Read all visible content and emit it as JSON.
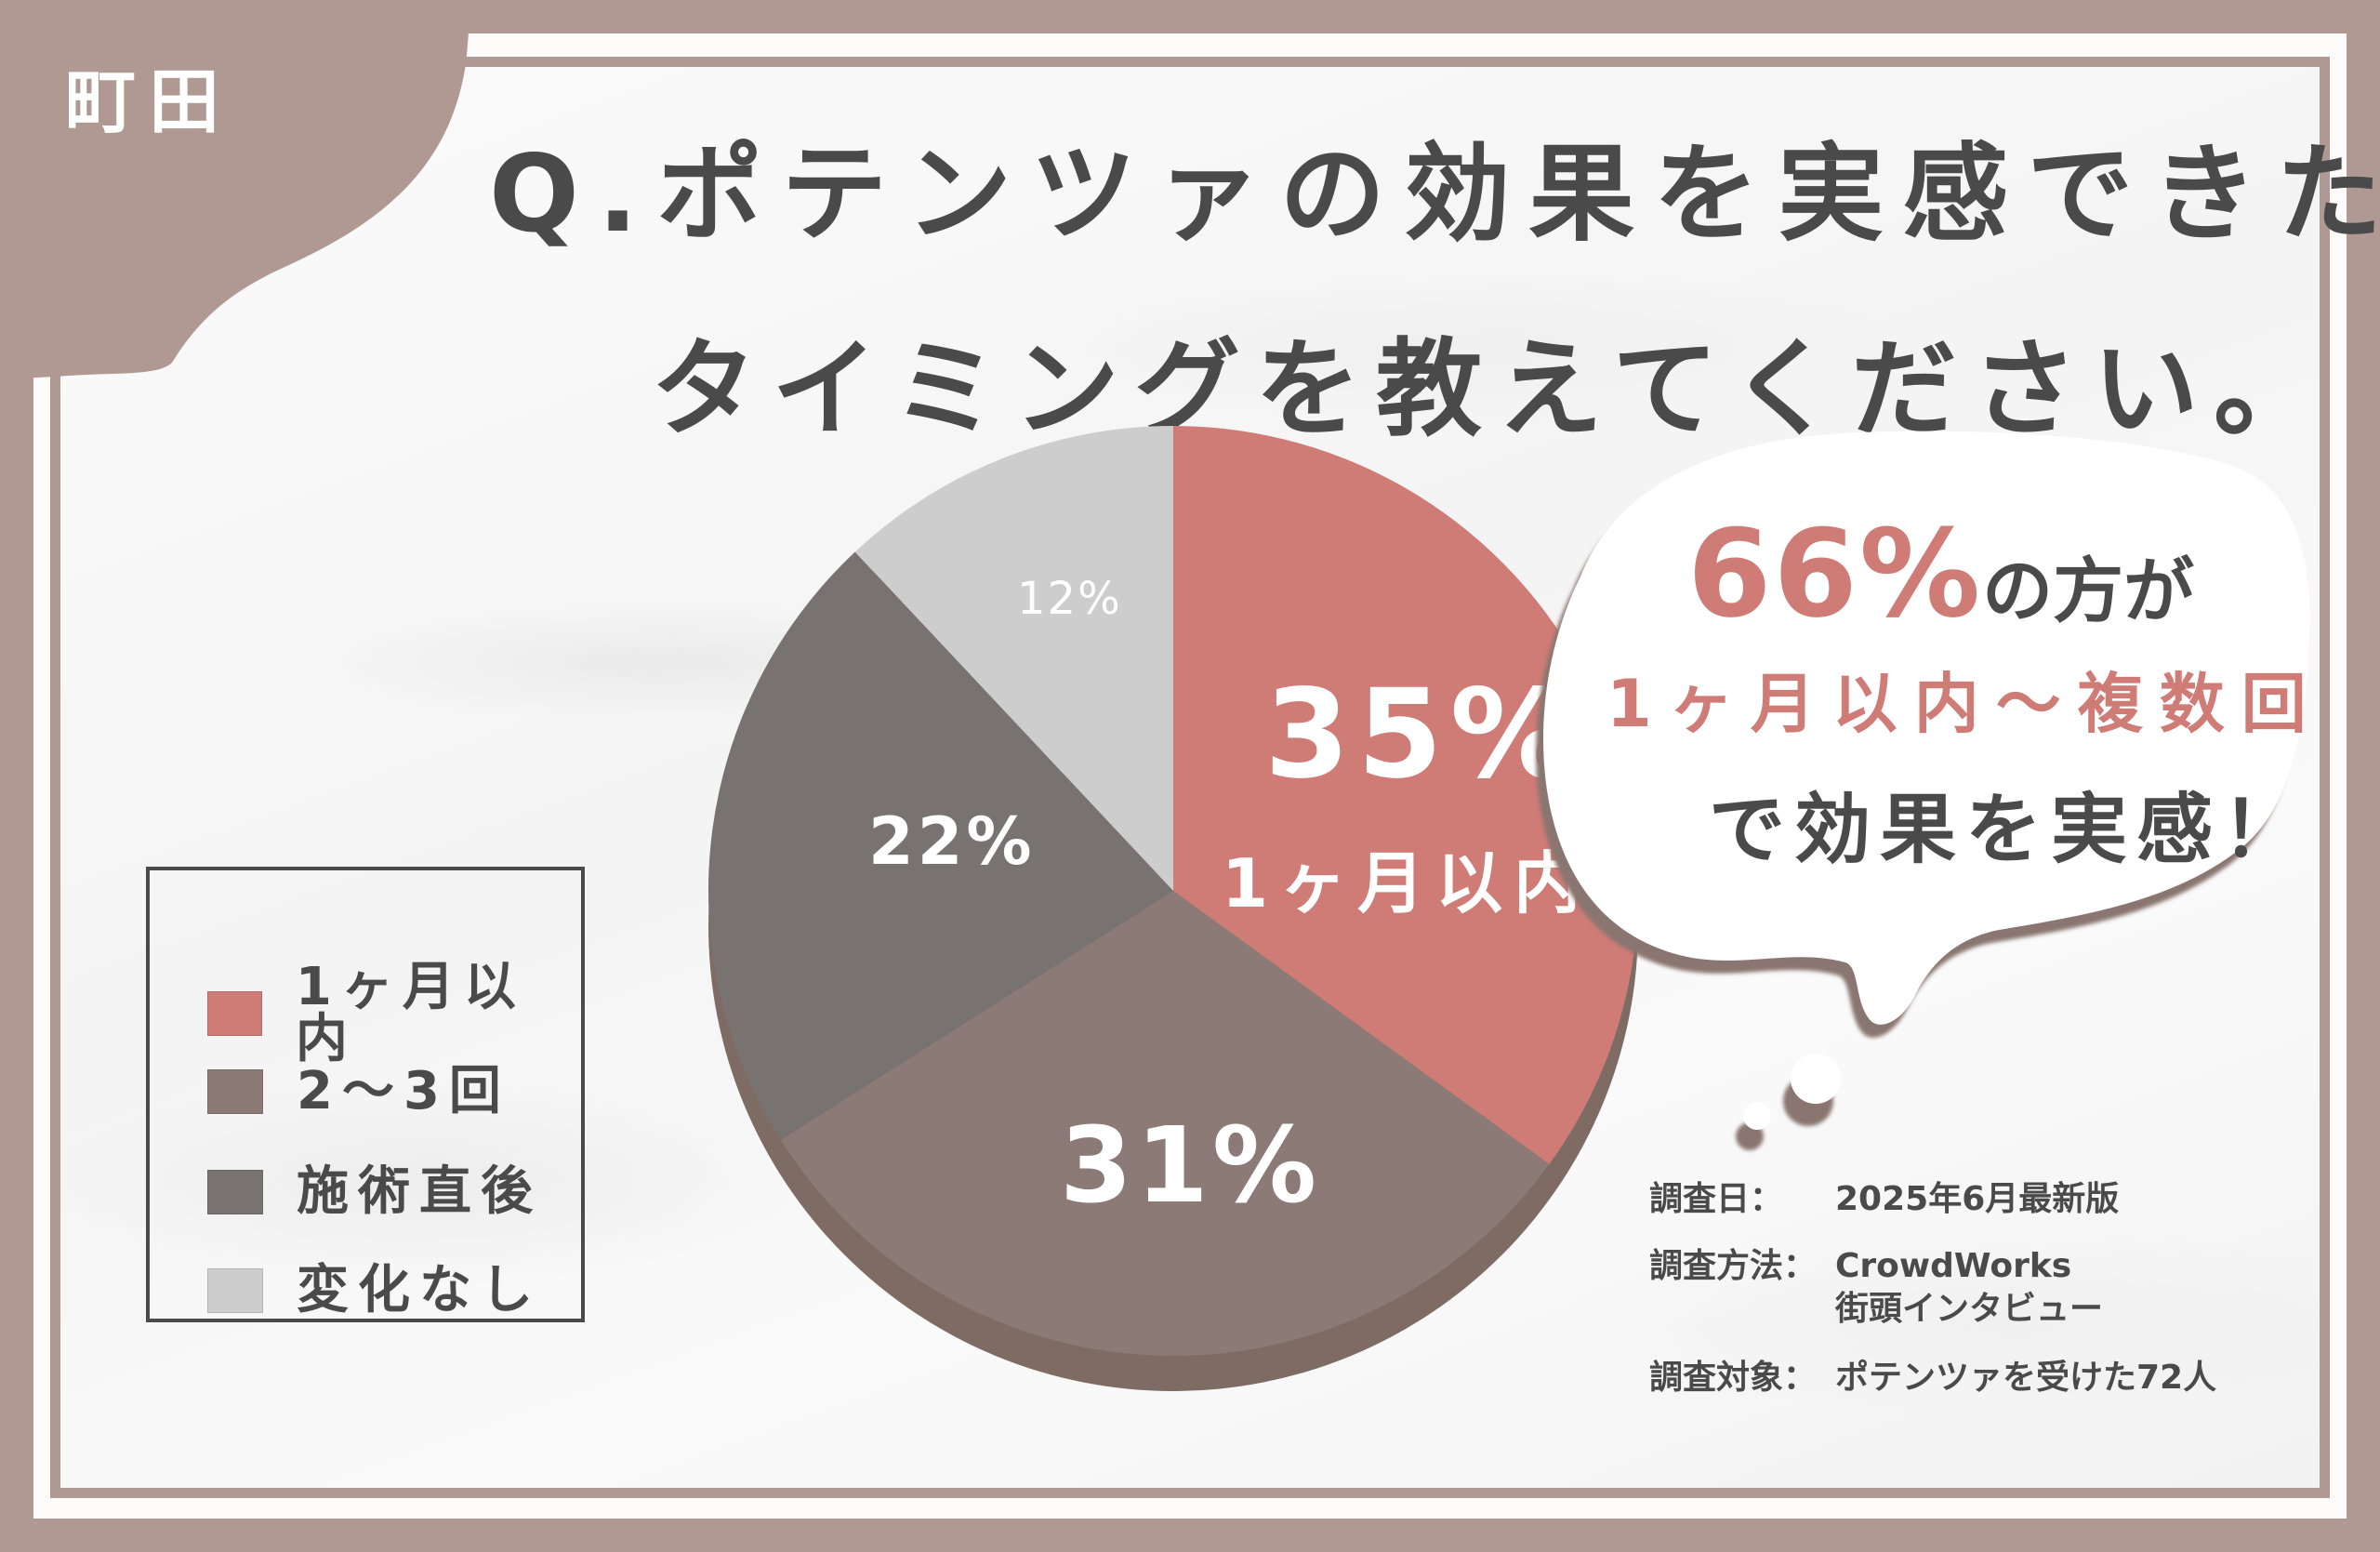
{
  "logo": {
    "text": "町田"
  },
  "title": {
    "line1": "Q.ポテンツァの効果を実感できた",
    "line2": "タイミングを教えてください。"
  },
  "colors": {
    "frame_brown": "#b09993",
    "text_dark": "#4a4a4a",
    "accent_red": "#cf7b76",
    "pie_shadow": "#7d6b64"
  },
  "chart_data": {
    "type": "pie",
    "title": "Q.ポテンツァの効果を実感できたタイミングを教えてください。",
    "start_angle": "12 o'clock, clockwise",
    "categories": [
      "1ヶ月以内",
      "2〜3回",
      "施術直後",
      "変化なし"
    ],
    "values": [
      35,
      31,
      22,
      12
    ],
    "unit": "%",
    "colors": [
      "#cf7b76",
      "#8c7a77",
      "#787371",
      "#cdcdcd"
    ],
    "slice_labels": [
      "35%",
      "31%",
      "22%",
      "12%"
    ],
    "highlight_sublabel": "1ヶ月以内",
    "legend_position": "left"
  },
  "pie": {
    "labels": {
      "first": "35%",
      "first_sub": "1ヶ月以内",
      "second": "31%",
      "third": "22%",
      "fourth": "12%"
    }
  },
  "legend": {
    "items": [
      {
        "label": "1ヶ月以内",
        "color": "#cf7b76"
      },
      {
        "label": "2〜3回",
        "color": "#8c7a77"
      },
      {
        "label": "施術直後",
        "color": "#787371"
      },
      {
        "label": "変化なし",
        "color": "#cdcdcd"
      }
    ]
  },
  "callout": {
    "highlight": "66%",
    "line1_rest": "の方が",
    "line2": "1ヶ月以内〜複数回",
    "line3": "で効果を実感！"
  },
  "survey": {
    "date_label": "調査日：",
    "date_value": "2025年6月最新版",
    "method_label": "調査方法：",
    "method_value_1": "CrowdWorks",
    "method_value_2": "街頭インタビュー",
    "target_label": "調査対象：",
    "target_value": "ポテンツァを受けた72人"
  }
}
